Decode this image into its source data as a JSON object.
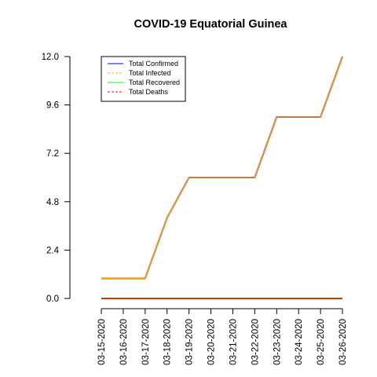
{
  "chart_data": {
    "type": "line",
    "title": "COVID-19 Equatorial Guinea",
    "xlabel": "",
    "ylabel": "",
    "categories": [
      "03-15-2020",
      "03-16-2020",
      "03-17-2020",
      "03-18-2020",
      "03-19-2020",
      "03-20-2020",
      "03-21-2020",
      "03-22-2020",
      "03-23-2020",
      "03-24-2020",
      "03-25-2020",
      "03-26-2020"
    ],
    "ylim": [
      0,
      12
    ],
    "yticks": [
      "0.0",
      "2.4",
      "4.8",
      "7.2",
      "9.6",
      "12.0"
    ],
    "grid": false,
    "legend_position": "top-left",
    "series": [
      {
        "name": "Total Confirmed",
        "color": "#0000ff",
        "dash": "solid",
        "values": [
          1,
          1,
          1,
          4,
          6,
          6,
          6,
          6,
          9,
          9,
          9,
          12
        ]
      },
      {
        "name": "Total Infected",
        "color": "#ffa500",
        "dash": "dashed",
        "values": [
          1,
          1,
          1,
          4,
          6,
          6,
          6,
          6,
          9,
          9,
          9,
          12
        ]
      },
      {
        "name": "Total Recovered",
        "color": "#00ff00",
        "dash": "solid",
        "values": [
          0,
          0,
          0,
          0,
          0,
          0,
          0,
          0,
          0,
          0,
          0,
          0
        ]
      },
      {
        "name": "Total Deaths",
        "color": "#ff0000",
        "dash": "dashed",
        "values": [
          0,
          0,
          0,
          0,
          0,
          0,
          0,
          0,
          0,
          0,
          0,
          0
        ]
      }
    ]
  }
}
